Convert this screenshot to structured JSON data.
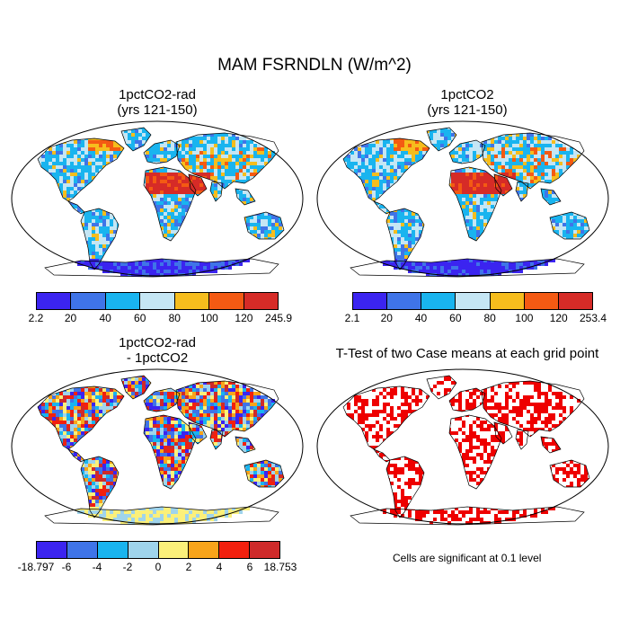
{
  "title": "MAM FSRNDLN (W/m^2)",
  "panels": [
    {
      "title_line1": "1pctCO2-rad",
      "title_line2": "(yrs 121-150)",
      "colorbar_labels": [
        "2.2",
        "20",
        "40",
        "60",
        "80",
        "100",
        "120",
        "245.9"
      ],
      "colors": [
        "#3b24f0",
        "#3f74e8",
        "#19b4ef",
        "#c5e6f4",
        "#f6bd1d",
        "#f45a13",
        "#d62b27"
      ]
    },
    {
      "title_line1": "1pctCO2",
      "title_line2": "(yrs 121-150)",
      "colorbar_labels": [
        "2.1",
        "20",
        "40",
        "60",
        "80",
        "100",
        "120",
        "253.4"
      ],
      "colors": [
        "#3b24f0",
        "#3f74e8",
        "#19b4ef",
        "#c5e6f4",
        "#f6bd1d",
        "#f45a13",
        "#d62b27"
      ]
    },
    {
      "title_line1": "1pctCO2-rad",
      "title_line2": "- 1pctCO2",
      "colorbar_labels": [
        "-18.797",
        "-6",
        "-4",
        "-2",
        "0",
        "2",
        "4",
        "6",
        "18.753"
      ],
      "colors": [
        "#3b24f0",
        "#3f74e8",
        "#19b4ef",
        "#9fd4ec",
        "#fbf07a",
        "#f8a41a",
        "#f2200e",
        "#cf2a2a"
      ]
    },
    {
      "title_line1": "T-Test of two Case means at each grid point",
      "note": "Cells are significant at 0.1 level",
      "significance_color": "#ee0000"
    }
  ]
}
